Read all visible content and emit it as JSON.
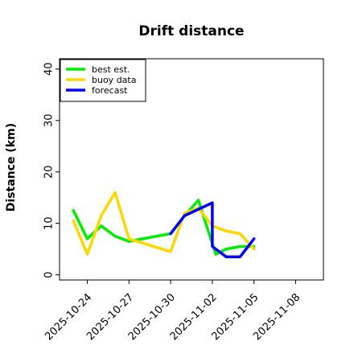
{
  "chart_data": {
    "type": "line",
    "title": "Drift distance",
    "xlabel": "",
    "ylabel": "Distance (km)",
    "ylim": [
      -1,
      42
    ],
    "xlim": [
      "2025-10-22T00:00",
      "2025-11-10T00:00"
    ],
    "yticks": [
      0,
      10,
      20,
      30,
      40
    ],
    "xticks": [
      {
        "date": "2025-10-24",
        "label": "2025-10-24",
        "color": "#000000"
      },
      {
        "date": "2025-10-27",
        "label": "2025-10-27",
        "color": "#000000"
      },
      {
        "date": "2025-10-30",
        "label": "2025-10-30",
        "color": "#228b22"
      },
      {
        "date": "2025-11-02",
        "label": "2025-11-02",
        "color": "#000000"
      },
      {
        "date": "2025-11-05",
        "label": "2025-11-05",
        "color": "#000000"
      },
      {
        "date": "2025-11-08",
        "label": "2025-11-08",
        "color": "#000000"
      }
    ],
    "grid": false,
    "legend_position": "top-left",
    "series": [
      {
        "name": "best est.",
        "color": "#00ee00",
        "points": [
          [
            "2025-10-23T00:00",
            12.5
          ],
          [
            "2025-10-24T00:00",
            7.0
          ],
          [
            "2025-10-25T00:00",
            9.5
          ],
          [
            "2025-10-26T00:00",
            7.5
          ],
          [
            "2025-10-27T00:00",
            6.5
          ],
          [
            "2025-10-30T00:00",
            8.0
          ],
          [
            "2025-10-31T00:00",
            11.5
          ],
          [
            "2025-11-01T00:00",
            14.5
          ],
          [
            "2025-11-02T06:00",
            4.0
          ],
          [
            "2025-11-03T00:00",
            5.0
          ],
          [
            "2025-11-04T00:00",
            5.5
          ],
          [
            "2025-11-05T00:00",
            5.5
          ]
        ]
      },
      {
        "name": "buoy data",
        "color": "#ffd700",
        "points": [
          [
            "2025-10-23T00:00",
            10.5
          ],
          [
            "2025-10-24T00:00",
            4.0
          ],
          [
            "2025-10-25T00:00",
            11.5
          ],
          [
            "2025-10-26T00:00",
            16.0
          ],
          [
            "2025-10-27T00:00",
            7.0
          ],
          [
            "2025-10-30T00:00",
            4.5
          ],
          [
            "2025-10-31T00:00",
            12.0
          ],
          [
            "2025-11-01T00:00",
            13.0
          ],
          [
            "2025-11-02T00:00",
            9.5
          ],
          [
            "2025-11-03T00:00",
            8.5
          ],
          [
            "2025-11-04T00:00",
            8.0
          ],
          [
            "2025-11-05T00:00",
            5.0
          ]
        ]
      },
      {
        "name": "forecast",
        "color": "#0000ff",
        "points": [
          [
            "2025-10-30T00:00",
            8.0
          ],
          [
            "2025-10-31T00:00",
            11.5
          ],
          [
            "2025-11-02T00:00",
            14.0
          ],
          [
            "2025-11-02T00:00",
            5.5
          ],
          [
            "2025-11-03T00:00",
            3.5
          ],
          [
            "2025-11-04T00:00",
            3.5
          ],
          [
            "2025-11-05T00:00",
            7.0
          ]
        ]
      }
    ]
  }
}
